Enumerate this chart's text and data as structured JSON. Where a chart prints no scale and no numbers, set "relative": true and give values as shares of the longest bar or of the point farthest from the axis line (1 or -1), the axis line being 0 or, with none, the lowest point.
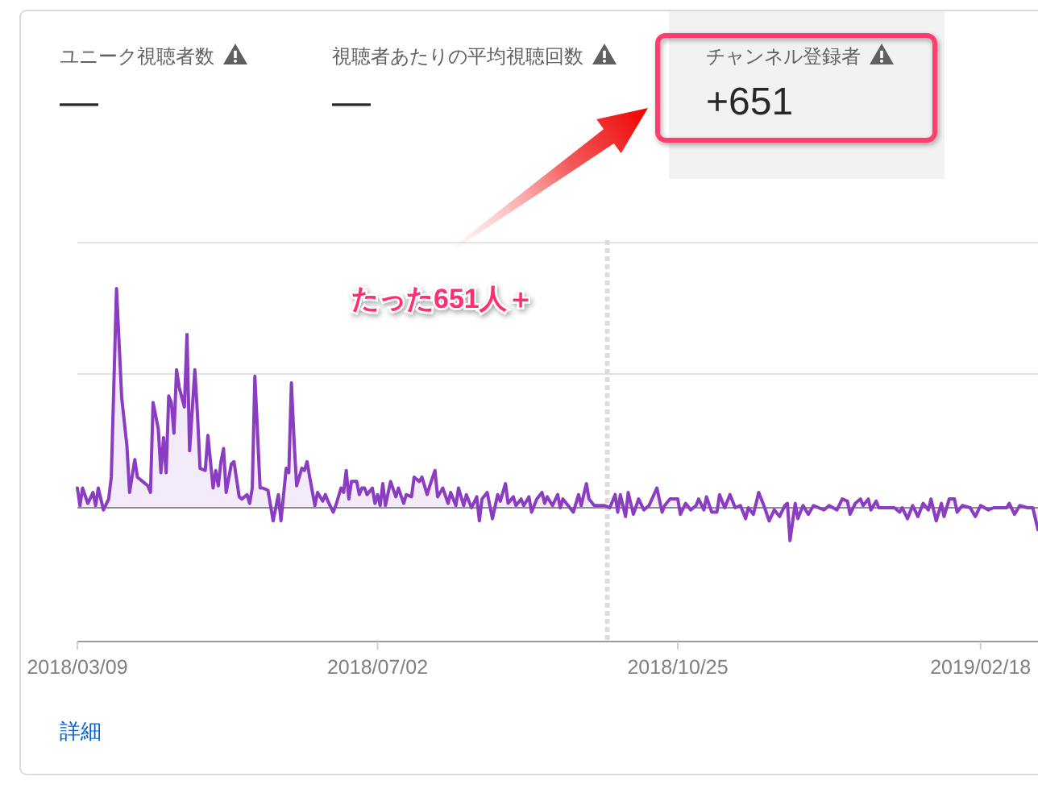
{
  "chart_data": [
    {
      "type": "other",
      "categories": [
        "ユニーク視聴者数",
        "視聴者あたりの平均視聴回数",
        "チャンネル登録者"
      ],
      "value_labels": [
        "—",
        "—",
        "+651"
      ],
      "annotations": [
        "たった651人＋"
      ]
    },
    {
      "type": "area",
      "relative": true,
      "xlim": [
        "2018-03-09",
        "2019-03-12"
      ],
      "xticks": [
        {
          "value": "2018-03-09",
          "label": "2018/03/09"
        },
        {
          "value": "2018-07-02",
          "label": "2018/07/02"
        },
        {
          "value": "2018-10-25",
          "label": "2018/10/25"
        },
        {
          "value": "2019-02-18",
          "label": "2019/02/18"
        }
      ],
      "ref_lines": [
        {
          "axis": "y",
          "value": 0.61,
          "color": "#e3e3e3",
          "line_style": "solid"
        },
        {
          "axis": "y",
          "value": 1.21,
          "color": "#e3e3e3",
          "line_style": "solid"
        },
        {
          "axis": "x",
          "value": "2018-09-28",
          "color": "#dddddd",
          "line_style": "dashed"
        }
      ],
      "annotations": [
        "詳細"
      ],
      "x": [
        "2018-03-09",
        "2018-03-10",
        "2018-03-11",
        "2018-03-13",
        "2018-03-15",
        "2018-03-16",
        "2018-03-17",
        "2018-03-19",
        "2018-03-21",
        "2018-03-22",
        "2018-03-24",
        "2018-03-26",
        "2018-03-28",
        "2018-03-29",
        "2018-03-31",
        "2018-04-01",
        "2018-04-03",
        "2018-04-05",
        "2018-04-06",
        "2018-04-07",
        "2018-04-09",
        "2018-04-10",
        "2018-04-11",
        "2018-04-12",
        "2018-04-13",
        "2018-04-14",
        "2018-04-15",
        "2018-04-16",
        "2018-04-17",
        "2018-04-19",
        "2018-04-20",
        "2018-04-21",
        "2018-04-23",
        "2018-04-24",
        "2018-04-25",
        "2018-04-27",
        "2018-04-28",
        "2018-04-30",
        "2018-05-01",
        "2018-05-02",
        "2018-05-03",
        "2018-05-04",
        "2018-05-05",
        "2018-05-07",
        "2018-05-08",
        "2018-05-10",
        "2018-05-11",
        "2018-05-13",
        "2018-05-14",
        "2018-05-15",
        "2018-05-16",
        "2018-05-18",
        "2018-05-19",
        "2018-05-21",
        "2018-05-22",
        "2018-05-23",
        "2018-05-25",
        "2018-05-26",
        "2018-05-28",
        "2018-05-29",
        "2018-05-30",
        "2018-05-31",
        "2018-06-01",
        "2018-06-03",
        "2018-06-04",
        "2018-06-05",
        "2018-06-06",
        "2018-06-08",
        "2018-06-09",
        "2018-06-11",
        "2018-06-12",
        "2018-06-13",
        "2018-06-15",
        "2018-06-16",
        "2018-06-18",
        "2018-06-19",
        "2018-06-20",
        "2018-06-21",
        "2018-06-22",
        "2018-06-24",
        "2018-06-25",
        "2018-06-26",
        "2018-06-27",
        "2018-06-28",
        "2018-06-30",
        "2018-07-01",
        "2018-07-02",
        "2018-07-03",
        "2018-07-04",
        "2018-07-05",
        "2018-07-07",
        "2018-07-09",
        "2018-07-10",
        "2018-07-12",
        "2018-07-13",
        "2018-07-15",
        "2018-07-16",
        "2018-07-18",
        "2018-07-19",
        "2018-07-21",
        "2018-07-22",
        "2018-07-24",
        "2018-07-25",
        "2018-07-27",
        "2018-07-29",
        "2018-07-30",
        "2018-08-01",
        "2018-08-02",
        "2018-08-04",
        "2018-08-05",
        "2018-08-07",
        "2018-08-09",
        "2018-08-10",
        "2018-08-11",
        "2018-08-13",
        "2018-08-14",
        "2018-08-15",
        "2018-08-17",
        "2018-08-18",
        "2018-08-20",
        "2018-08-21",
        "2018-08-23",
        "2018-08-24",
        "2018-08-26",
        "2018-08-27",
        "2018-08-29",
        "2018-08-30",
        "2018-09-01",
        "2018-09-03",
        "2018-09-04",
        "2018-09-05",
        "2018-09-07",
        "2018-09-09",
        "2018-09-10",
        "2018-09-11",
        "2018-09-13",
        "2018-09-15",
        "2018-09-17",
        "2018-09-18",
        "2018-09-20",
        "2018-09-21",
        "2018-09-23",
        "2018-09-27",
        "2018-09-29",
        "2018-10-01",
        "2018-10-02",
        "2018-10-03",
        "2018-10-05",
        "2018-10-06",
        "2018-10-08",
        "2018-10-10",
        "2018-10-12",
        "2018-10-14",
        "2018-10-17",
        "2018-10-19",
        "2018-10-20",
        "2018-10-22",
        "2018-10-25",
        "2018-10-26",
        "2018-10-28",
        "2018-10-30",
        "2018-11-01",
        "2018-11-02",
        "2018-11-04",
        "2018-11-05",
        "2018-11-07",
        "2018-11-09",
        "2018-11-10",
        "2018-11-12",
        "2018-11-14",
        "2018-11-16",
        "2018-11-18",
        "2018-11-20",
        "2018-11-21",
        "2018-11-23",
        "2018-11-25",
        "2018-11-27",
        "2018-11-29",
        "2018-12-01",
        "2018-12-03",
        "2018-12-05",
        "2018-12-06",
        "2018-12-07",
        "2018-12-09",
        "2018-12-10",
        "2018-12-12",
        "2018-12-14",
        "2018-12-16",
        "2018-12-18",
        "2018-12-20",
        "2018-12-22",
        "2018-12-25",
        "2018-12-27",
        "2018-12-29",
        "2018-12-30",
        "2019-01-01",
        "2019-01-03",
        "2019-01-04",
        "2019-01-06",
        "2019-01-07",
        "2019-01-09",
        "2019-01-10",
        "2019-01-16",
        "2019-01-18",
        "2019-01-19",
        "2019-01-21",
        "2019-01-23",
        "2019-01-25",
        "2019-01-27",
        "2019-01-29",
        "2019-01-30",
        "2019-02-01",
        "2019-02-03",
        "2019-02-04",
        "2019-02-06",
        "2019-02-08",
        "2019-02-09",
        "2019-02-11",
        "2019-02-14",
        "2019-02-16",
        "2019-02-18",
        "2019-02-21",
        "2019-02-23",
        "2019-02-28",
        "2019-03-01",
        "2019-03-03",
        "2019-03-05",
        "2019-03-08",
        "2019-03-10",
        "2019-03-12"
      ],
      "series": [
        {
          "color": "#8b3dc1",
          "values": [
            0.09,
            0.01,
            0.09,
            0.02,
            0.07,
            0.01,
            0.09,
            -0.01,
            0.04,
            0.14,
            1,
            0.5,
            0.28,
            0.07,
            0.22,
            0.14,
            0.12,
            0.1,
            0.07,
            0.48,
            0.36,
            0.16,
            0.32,
            0.16,
            0.51,
            0.48,
            0.34,
            0.63,
            0.55,
            0.46,
            0.79,
            0.26,
            0.63,
            0.43,
            0.18,
            0.17,
            0.33,
            0.09,
            0.17,
            0.1,
            0.21,
            0.27,
            0.07,
            0.2,
            0.21,
            0.05,
            0.04,
            0.06,
            0.02,
            0.09,
            0.6,
            0.09,
            0.09,
            0.08,
            0.01,
            -0.06,
            0.06,
            -0.06,
            0.18,
            0.16,
            0.57,
            0.31,
            0.1,
            0.18,
            0.17,
            0.21,
            0.14,
            0.01,
            0.07,
            0.03,
            0.06,
            0.03,
            -0.02,
            0.01,
            0.09,
            0.07,
            0.17,
            0.04,
            0.12,
            0.12,
            0.06,
            0.09,
            0.09,
            0.06,
            0.09,
            0.02,
            0.06,
            0.01,
            0.11,
            0.01,
            0.12,
            0.05,
            0.09,
            0.02,
            0.06,
            0.05,
            0.14,
            0.12,
            0.14,
            0.06,
            0.1,
            0.17,
            0.05,
            0.09,
            0.02,
            0.07,
            0.01,
            0.09,
            0.01,
            0.06,
            0,
            0.05,
            -0.06,
            0.04,
            0.07,
            0.01,
            -0.05,
            0.06,
            0.03,
            0.11,
            0.02,
            0.05,
            0.01,
            0.04,
            0.01,
            0.05,
            -0.02,
            0.04,
            0.07,
            0.02,
            0.05,
            0.01,
            0.06,
            0,
            0.04,
            0.01,
            -0.02,
            0.06,
            0.01,
            0.11,
            0.04,
            0.01,
            0.01,
            0,
            0.06,
            -0.02,
            0.06,
            -0.04,
            0.07,
            -0.03,
            0.04,
            -0.01,
            0.01,
            0.09,
            -0.02,
            0.01,
            0.04,
            0.04,
            -0.03,
            0.02,
            -0.01,
            0.01,
            0.04,
            -0.01,
            0.05,
            -0.02,
            -0.02,
            0.06,
            0,
            0.06,
            0,
            0.01,
            -0.05,
            0,
            -0.03,
            0.07,
            0.01,
            -0.06,
            -0.01,
            -0.04,
            0.01,
            0.02,
            -0.15,
            0.02,
            -0.05,
            0.01,
            -0.03,
            0.01,
            0,
            -0.01,
            0.01,
            -0.01,
            0.04,
            0.03,
            -0.03,
            0.02,
            0.04,
            0.01,
            0.04,
            -0.01,
            0.03,
            0,
            0,
            -0.02,
            0,
            -0.05,
            0.01,
            -0.04,
            0.02,
            -0.01,
            0.04,
            -0.06,
            0.02,
            -0.04,
            0.04,
            0.04,
            -0.02,
            0.01,
            0,
            -0.04,
            0.01,
            -0.01,
            0,
            0,
            0.02,
            -0.03,
            0.01,
            0,
            0,
            -0.1
          ]
        }
      ]
    }
  ]
}
